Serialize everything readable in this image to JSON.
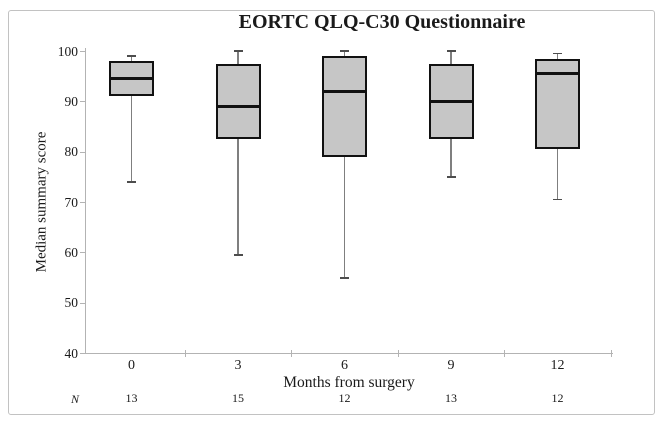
{
  "figure": {
    "title": "EORTC QLQ-C30 Questionnaire",
    "y_axis_title": "Median summary score",
    "x_axis_title": "Months from surgery",
    "n_row_label": "N"
  },
  "chart_data": {
    "type": "boxplot",
    "title": "EORTC QLQ-C30 Questionnaire",
    "xlabel": "Months from surgery",
    "ylabel": "Median summary score",
    "ylim": [
      40,
      100
    ],
    "yticks": [
      100,
      90,
      80,
      70,
      60,
      50,
      40
    ],
    "categories": [
      "0",
      "3",
      "6",
      "9",
      "12"
    ],
    "n_label": "N",
    "n_values": [
      "13",
      "15",
      "12",
      "13",
      "12"
    ],
    "series": [
      {
        "month": "0",
        "n": 13,
        "whisker_low": 74,
        "q1": 91,
        "median": 94.5,
        "q3": 98,
        "whisker_high": 99
      },
      {
        "month": "3",
        "n": 15,
        "whisker_low": 59.5,
        "q1": 82.5,
        "median": 89,
        "q3": 97.5,
        "whisker_high": 100
      },
      {
        "month": "6",
        "n": 12,
        "whisker_low": 55,
        "q1": 79,
        "median": 92,
        "q3": 99,
        "whisker_high": 100
      },
      {
        "month": "9",
        "n": 13,
        "whisker_low": 75,
        "q1": 82.5,
        "median": 90,
        "q3": 97.5,
        "whisker_high": 100
      },
      {
        "month": "12",
        "n": 12,
        "whisker_low": 70.5,
        "q1": 80.5,
        "median": 95.5,
        "q3": 98.5,
        "whisker_high": 99.5
      }
    ],
    "legend": "none",
    "grid": false,
    "colors": {
      "box_fill": "#c6c6c6",
      "box_border": "#111111",
      "median": "#111111",
      "whisker": "#7f7f7f",
      "whisker_cap": "#4d4d4d",
      "axis": "#b3b3b3",
      "text": "#1a1a1a"
    }
  }
}
